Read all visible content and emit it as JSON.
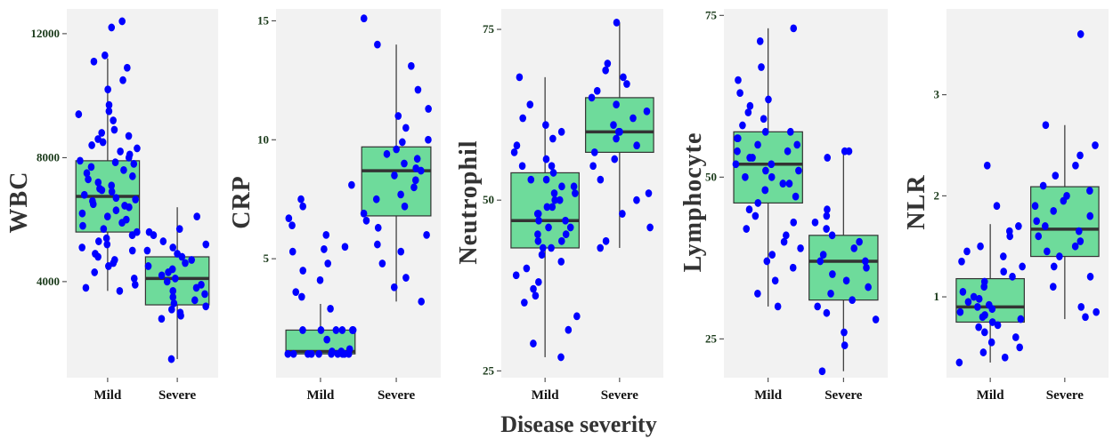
{
  "chart_data": [
    {
      "type": "box",
      "ylabel": "WBC",
      "categories": [
        "Mild",
        "Severe"
      ],
      "yticks": [
        4000,
        8000,
        12000
      ],
      "ylim": [
        900,
        12800
      ],
      "boxes": [
        {
          "category": "Mild",
          "min": 3700,
          "q1": 5600,
          "median": 6750,
          "q3": 7900,
          "max": 11200
        },
        {
          "category": "Severe",
          "min": 1500,
          "q1": 3250,
          "median": 4100,
          "q3": 4800,
          "max": 6400
        }
      ],
      "points": [
        {
          "category": "Mild",
          "values": [
            12400,
            12200,
            11300,
            11100,
            10900,
            10500,
            10200,
            9700,
            9500,
            9400,
            9200,
            8900,
            8800,
            8700,
            8600,
            8500,
            8400,
            8300,
            8200,
            8100,
            8000,
            7900,
            7850,
            7800,
            7700,
            7600,
            7500,
            7400,
            7300,
            7200,
            7100,
            7000,
            6950,
            6900,
            6800,
            6700,
            6650,
            6600,
            6500,
            6450,
            6400,
            6300,
            6200,
            6100,
            6000,
            5900,
            5800,
            5700,
            5600,
            5500,
            5400,
            5300,
            5200,
            5100,
            5000,
            4900,
            4800,
            4700,
            4600,
            4500,
            4300,
            4100,
            3900,
            3800,
            3700
          ]
        },
        {
          "category": "Severe",
          "values": [
            6100,
            5700,
            5600,
            5500,
            5300,
            5200,
            5100,
            5000,
            4900,
            4800,
            4700,
            4600,
            4500,
            4400,
            4300,
            4200,
            4100,
            4000,
            3900,
            3800,
            3700,
            3600,
            3500,
            3400,
            3300,
            3200,
            3100,
            3000,
            2900,
            2800,
            1500
          ]
        }
      ],
      "box_color": "#6EDB9B",
      "point_color": "#0000FF",
      "panel_bg": "#F2F2F2"
    },
    {
      "type": "box",
      "ylabel": "CRP",
      "categories": [
        "Mild",
        "Severe"
      ],
      "yticks": [
        5,
        10,
        15
      ],
      "ylim": [
        0,
        15.5
      ],
      "boxes": [
        {
          "category": "Mild",
          "min": 0.9,
          "q1": 1.0,
          "median": 1.1,
          "q3": 2.0,
          "max": 3.1
        },
        {
          "category": "Severe",
          "min": 3.2,
          "q1": 6.8,
          "median": 8.7,
          "q3": 9.7,
          "max": 14.0
        }
      ],
      "points": [
        {
          "category": "Mild",
          "values": [
            8.1,
            7.5,
            7.2,
            6.7,
            6.4,
            6.0,
            5.5,
            5.4,
            5.3,
            4.8,
            4.5,
            4.1,
            3.6,
            3.4,
            2.9,
            2.0,
            2.0,
            2.0,
            2.0,
            2.0,
            2.0,
            1.6,
            1.2,
            1.1,
            1.1,
            1.0,
            1.0,
            1.0,
            1.0,
            1.0,
            1.0,
            1.0,
            1.0,
            1.0,
            1.0
          ]
        },
        {
          "category": "Severe",
          "values": [
            15.1,
            14.0,
            13.1,
            12.1,
            11.3,
            11.0,
            10.5,
            10.0,
            9.9,
            9.6,
            9.4,
            9.2,
            9.0,
            8.8,
            8.7,
            8.5,
            8.3,
            8.0,
            7.7,
            7.5,
            7.2,
            6.9,
            6.6,
            6.3,
            6.0,
            5.6,
            5.3,
            4.8,
            4.2,
            3.8,
            3.2
          ]
        }
      ],
      "box_color": "#6EDB9B",
      "point_color": "#0000FF",
      "panel_bg": "#F2F2F2"
    },
    {
      "type": "box",
      "ylabel": "Neutrophil",
      "categories": [
        "Mild",
        "Severe"
      ],
      "yticks": [
        25,
        50,
        75
      ],
      "ylim": [
        24,
        78
      ],
      "boxes": [
        {
          "category": "Mild",
          "min": 27,
          "q1": 43,
          "median": 47,
          "q3": 54,
          "max": 68
        },
        {
          "category": "Severe",
          "min": 43,
          "q1": 57,
          "median": 60,
          "q3": 65,
          "max": 76
        }
      ],
      "points": [
        {
          "category": "Mild",
          "values": [
            68,
            64,
            62,
            61,
            60,
            59,
            58,
            57,
            56,
            55,
            55,
            54,
            53,
            53,
            52,
            52,
            51,
            51,
            50,
            50,
            49,
            49,
            48,
            48,
            47,
            47,
            46,
            46,
            45,
            45,
            44,
            44,
            43,
            43,
            42,
            41,
            40,
            39,
            38,
            37,
            36,
            35,
            33,
            31,
            29,
            27
          ]
        },
        {
          "category": "Severe",
          "values": [
            76,
            70,
            69,
            68,
            67,
            66,
            65,
            64,
            63,
            62,
            61,
            60,
            60,
            59,
            58,
            57,
            56,
            55,
            53,
            51,
            50,
            48,
            46,
            44,
            43
          ]
        }
      ],
      "box_color": "#6EDB9B",
      "point_color": "#0000FF",
      "panel_bg": "#F2F2F2"
    },
    {
      "type": "box",
      "ylabel": "Lymphocyte",
      "categories": [
        "Mild",
        "Severe"
      ],
      "yticks": [
        25,
        50,
        75
      ],
      "ylim": [
        19,
        76
      ],
      "boxes": [
        {
          "category": "Mild",
          "min": 30,
          "q1": 46,
          "median": 52,
          "q3": 57,
          "max": 73
        },
        {
          "category": "Severe",
          "min": 20,
          "q1": 31,
          "median": 37,
          "q3": 41,
          "max": 54
        }
      ],
      "points": [
        {
          "category": "Mild",
          "values": [
            73,
            71,
            67,
            65,
            63,
            62,
            61,
            60,
            59,
            58,
            57,
            57,
            56,
            56,
            55,
            55,
            54,
            54,
            53,
            53,
            52,
            52,
            51,
            51,
            50,
            50,
            49,
            49,
            48,
            48,
            47,
            46,
            45,
            44,
            43,
            42,
            41,
            40,
            39,
            38,
            37,
            36,
            34,
            32,
            30
          ]
        },
        {
          "category": "Severe",
          "values": [
            54,
            54,
            53,
            45,
            44,
            43,
            42,
            41,
            40,
            39,
            38,
            37,
            37,
            36,
            35,
            34,
            33,
            32,
            31,
            30,
            29,
            28,
            26,
            24,
            20
          ]
        }
      ],
      "box_color": "#6EDB9B",
      "point_color": "#0000FF",
      "panel_bg": "#F2F2F2"
    },
    {
      "type": "box",
      "ylabel": "NLR",
      "categories": [
        "Mild",
        "Severe"
      ],
      "yticks": [
        1,
        2,
        3
      ],
      "ylim": [
        0.2,
        3.85
      ],
      "boxes": [
        {
          "category": "Mild",
          "min": 0.35,
          "q1": 0.75,
          "median": 0.9,
          "q3": 1.18,
          "max": 1.72
        },
        {
          "category": "Severe",
          "min": 0.78,
          "q1": 1.4,
          "median": 1.67,
          "q3": 2.09,
          "max": 2.7
        }
      ],
      "points": [
        {
          "category": "Mild",
          "values": [
            2.3,
            1.9,
            1.7,
            1.65,
            1.6,
            1.5,
            1.45,
            1.4,
            1.35,
            1.3,
            1.25,
            1.2,
            1.15,
            1.1,
            1.05,
            1.0,
            0.98,
            0.95,
            0.92,
            0.9,
            0.88,
            0.85,
            0.82,
            0.8,
            0.78,
            0.75,
            0.72,
            0.7,
            0.65,
            0.6,
            0.55,
            0.5,
            0.45,
            0.4,
            0.35
          ]
        },
        {
          "category": "Severe",
          "values": [
            3.6,
            2.7,
            2.5,
            2.4,
            2.3,
            2.2,
            2.1,
            2.05,
            2.0,
            1.95,
            1.9,
            1.85,
            1.8,
            1.75,
            1.7,
            1.65,
            1.6,
            1.55,
            1.5,
            1.45,
            1.4,
            1.3,
            1.2,
            1.1,
            0.9,
            0.85,
            0.8
          ]
        }
      ],
      "box_color": "#6EDB9B",
      "point_color": "#0000FF",
      "panel_bg": "#F2F2F2"
    }
  ],
  "xlabel": "Disease severity"
}
